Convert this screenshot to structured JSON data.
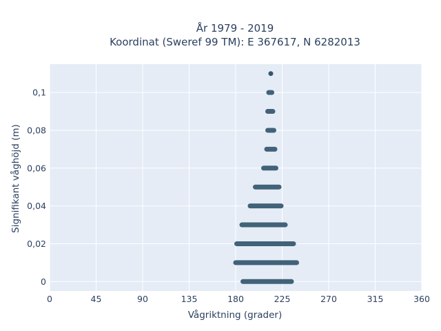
{
  "chart_data": {
    "type": "scatter",
    "title_line1": "År 1979 - 2019",
    "title_line2": "Koordinat (Sweref 99 TM): E 367617, N 6282013",
    "xlabel": "Vågriktning (grader)",
    "ylabel": "Signifikant våghöjd (m)",
    "xlim": [
      0,
      360
    ],
    "ylim": [
      -0.005,
      0.115
    ],
    "xticks": [
      0,
      45,
      90,
      135,
      180,
      225,
      270,
      315,
      360
    ],
    "xtick_labels": [
      "0",
      "45",
      "90",
      "135",
      "180",
      "225",
      "270",
      "315",
      "360"
    ],
    "yticks": [
      0,
      0.02,
      0.04,
      0.06,
      0.08,
      0.1
    ],
    "ytick_labels": [
      "0",
      "0,02",
      "0,04",
      "0,06",
      "0,08",
      "0,1"
    ],
    "grid": true,
    "legend": "none",
    "plot_background": "#e5ecf6",
    "marker_color": "#34576e",
    "series": [
      {
        "points": [
          {
            "y": 0.0,
            "x_min": 187,
            "x_max": 234
          },
          {
            "y": 0.01,
            "x_min": 180,
            "x_max": 239
          },
          {
            "y": 0.02,
            "x_min": 181,
            "x_max": 236
          },
          {
            "y": 0.03,
            "x_min": 186,
            "x_max": 228
          },
          {
            "y": 0.04,
            "x_min": 194,
            "x_max": 224
          },
          {
            "y": 0.05,
            "x_min": 199,
            "x_max": 222
          },
          {
            "y": 0.06,
            "x_min": 207,
            "x_max": 219
          },
          {
            "y": 0.07,
            "x_min": 210,
            "x_max": 218
          },
          {
            "y": 0.08,
            "x_min": 211,
            "x_max": 217
          },
          {
            "y": 0.09,
            "x_min": 211,
            "x_max": 216
          },
          {
            "y": 0.1,
            "x_min": 212,
            "x_max": 215
          },
          {
            "y": 0.11,
            "x_min": 214,
            "x_max": 214
          }
        ]
      }
    ]
  }
}
